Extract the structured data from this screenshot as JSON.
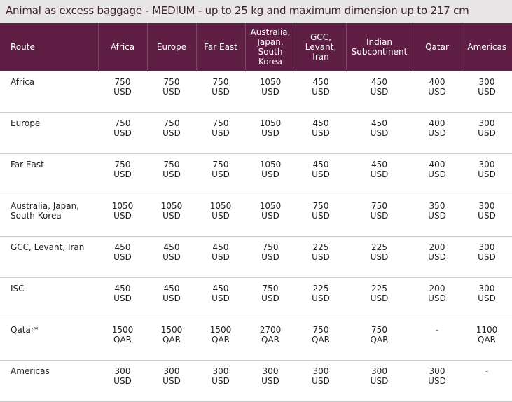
{
  "title": "Animal as excess baggage - MEDIUM - up to 25 kg and maximum dimension up to 217 cm",
  "headers": [
    "Route",
    "Africa",
    "Europe",
    "Far East",
    "Australia, Japan, South Korea",
    "GCC, Levant, Iran",
    "Indian Subcontinent",
    "Qatar",
    "Americas"
  ],
  "rows": [
    {
      "route": "Africa",
      "cells": [
        {
          "amount": "750",
          "currency": "USD"
        },
        {
          "amount": "750",
          "currency": "USD"
        },
        {
          "amount": "750",
          "currency": "USD"
        },
        {
          "amount": "1050",
          "currency": "USD"
        },
        {
          "amount": "450",
          "currency": "USD"
        },
        {
          "amount": "450",
          "currency": "USD"
        },
        {
          "amount": "400",
          "currency": "USD"
        },
        {
          "amount": "300",
          "currency": "USD"
        }
      ]
    },
    {
      "route": "Europe",
      "cells": [
        {
          "amount": "750",
          "currency": "USD"
        },
        {
          "amount": "750",
          "currency": "USD"
        },
        {
          "amount": "750",
          "currency": "USD"
        },
        {
          "amount": "1050",
          "currency": "USD"
        },
        {
          "amount": "450",
          "currency": "USD"
        },
        {
          "amount": "450",
          "currency": "USD"
        },
        {
          "amount": "400",
          "currency": "USD"
        },
        {
          "amount": "300",
          "currency": "USD"
        }
      ]
    },
    {
      "route": "Far East",
      "cells": [
        {
          "amount": "750",
          "currency": "USD"
        },
        {
          "amount": "750",
          "currency": "USD"
        },
        {
          "amount": "750",
          "currency": "USD"
        },
        {
          "amount": "1050",
          "currency": "USD"
        },
        {
          "amount": "450",
          "currency": "USD"
        },
        {
          "amount": "450",
          "currency": "USD"
        },
        {
          "amount": "400",
          "currency": "USD"
        },
        {
          "amount": "300",
          "currency": "USD"
        }
      ]
    },
    {
      "route": "Australia, Japan, South Korea",
      "cells": [
        {
          "amount": "1050",
          "currency": "USD"
        },
        {
          "amount": "1050",
          "currency": "USD"
        },
        {
          "amount": "1050",
          "currency": "USD"
        },
        {
          "amount": "1050",
          "currency": "USD"
        },
        {
          "amount": "750",
          "currency": "USD"
        },
        {
          "amount": "750",
          "currency": "USD"
        },
        {
          "amount": "350",
          "currency": "USD"
        },
        {
          "amount": "300",
          "currency": "USD"
        }
      ]
    },
    {
      "route": "GCC, Levant, Iran",
      "cells": [
        {
          "amount": "450",
          "currency": "USD"
        },
        {
          "amount": "450",
          "currency": "USD"
        },
        {
          "amount": "450",
          "currency": "USD"
        },
        {
          "amount": "750",
          "currency": "USD"
        },
        {
          "amount": "225",
          "currency": "USD"
        },
        {
          "amount": "225",
          "currency": "USD"
        },
        {
          "amount": "200",
          "currency": "USD"
        },
        {
          "amount": "300",
          "currency": "USD"
        }
      ]
    },
    {
      "route": "ISC",
      "cells": [
        {
          "amount": "450",
          "currency": "USD"
        },
        {
          "amount": "450",
          "currency": "USD"
        },
        {
          "amount": "450",
          "currency": "USD"
        },
        {
          "amount": "750",
          "currency": "USD"
        },
        {
          "amount": "225",
          "currency": "USD"
        },
        {
          "amount": "225",
          "currency": "USD"
        },
        {
          "amount": "200",
          "currency": "USD"
        },
        {
          "amount": "300",
          "currency": "USD"
        }
      ]
    },
    {
      "route": "Qatar*",
      "cells": [
        {
          "amount": "1500",
          "currency": "QAR"
        },
        {
          "amount": "1500",
          "currency": "QAR"
        },
        {
          "amount": "1500",
          "currency": "QAR"
        },
        {
          "amount": "2700",
          "currency": "QAR"
        },
        {
          "amount": "750",
          "currency": "QAR"
        },
        {
          "amount": "750",
          "currency": "QAR"
        },
        {
          "amount": "-",
          "currency": ""
        },
        {
          "amount": "1100",
          "currency": "QAR"
        }
      ]
    },
    {
      "route": "Americas",
      "cells": [
        {
          "amount": "300",
          "currency": "USD"
        },
        {
          "amount": "300",
          "currency": "USD"
        },
        {
          "amount": "300",
          "currency": "USD"
        },
        {
          "amount": "300",
          "currency": "USD"
        },
        {
          "amount": "300",
          "currency": "USD"
        },
        {
          "amount": "300",
          "currency": "USD"
        },
        {
          "amount": "300",
          "currency": "USD"
        },
        {
          "amount": "-",
          "currency": ""
        }
      ]
    }
  ],
  "colors": {
    "header_bg": "#5f1f45",
    "title_bg": "#e8e6e7",
    "title_text": "#3f1f2e"
  }
}
